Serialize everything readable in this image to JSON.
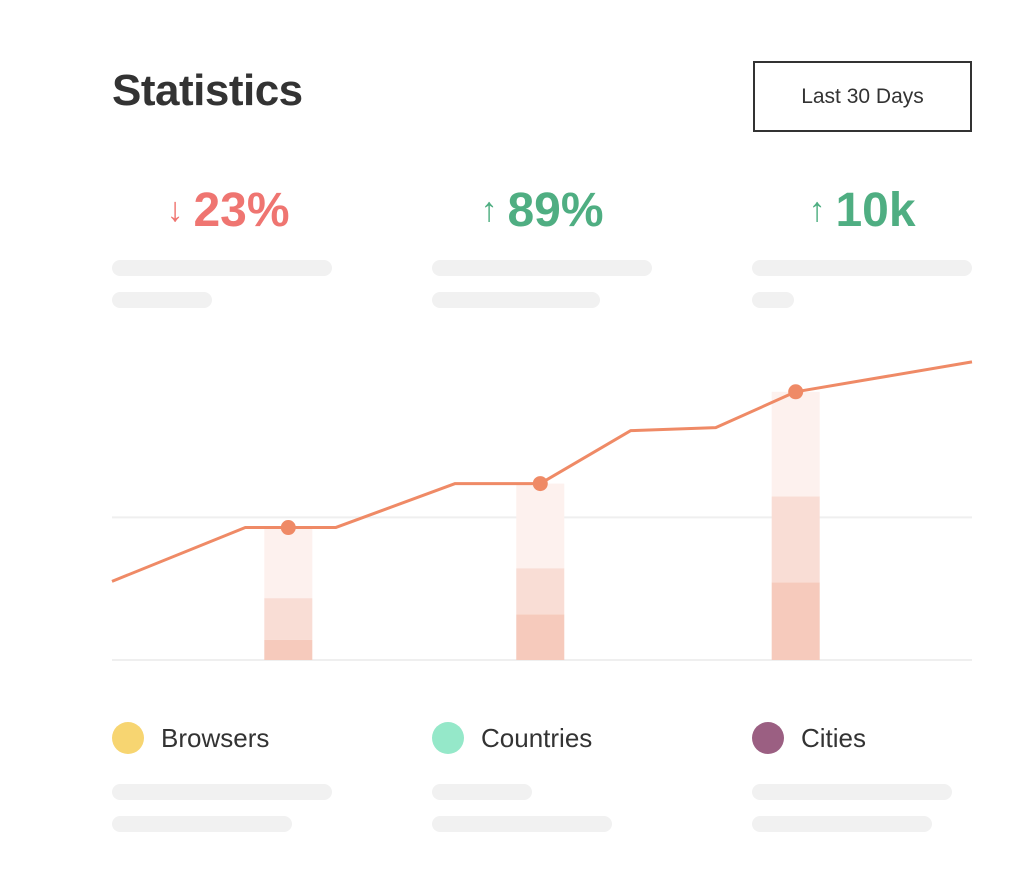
{
  "header": {
    "title": "Statistics",
    "range_button": "Last 30 Days"
  },
  "stats": [
    {
      "arrow": "↓",
      "value": "23%",
      "color": "#ef7571",
      "icon": "arrow-down-icon"
    },
    {
      "arrow": "↑",
      "value": "89%",
      "color": "#4fae82",
      "icon": "arrow-up-icon"
    },
    {
      "arrow": "↑",
      "value": "10k",
      "color": "#4fae82",
      "icon": "arrow-up-icon"
    }
  ],
  "legend": [
    {
      "label": "Browsers",
      "color": "#f7d571"
    },
    {
      "label": "Countries",
      "color": "#95e8c9"
    },
    {
      "label": "Cities",
      "color": "#9b5f82"
    }
  ],
  "chart_data": {
    "type": "line",
    "title": "",
    "xlabel": "",
    "ylabel": "",
    "xlim": [
      0,
      100
    ],
    "ylim": [
      0,
      100
    ],
    "grid": true,
    "gridlines_y": [
      0,
      47.7
    ],
    "line": {
      "color": "#ef8a66",
      "x": [
        0,
        15.5,
        26,
        39.9,
        49.8,
        60.3,
        70.2,
        79.5,
        100
      ],
      "y": [
        26.3,
        44.3,
        44.3,
        59,
        59,
        76.7,
        77.7,
        89.7,
        99.7
      ]
    },
    "markers": [
      {
        "x": 20.5,
        "y": 44.3
      },
      {
        "x": 49.8,
        "y": 59
      },
      {
        "x": 79.5,
        "y": 89.7
      }
    ],
    "stacked_bars": {
      "x": [
        20.5,
        49.8,
        79.5
      ],
      "colors": [
        "#f6cabc",
        "#f9ddd5",
        "#fdf1ee"
      ],
      "segments_cumulative": [
        [
          6.7,
          20.7,
          44.3
        ],
        [
          15.3,
          30.7,
          59
        ],
        [
          26,
          54.7,
          89.7
        ]
      ]
    }
  }
}
